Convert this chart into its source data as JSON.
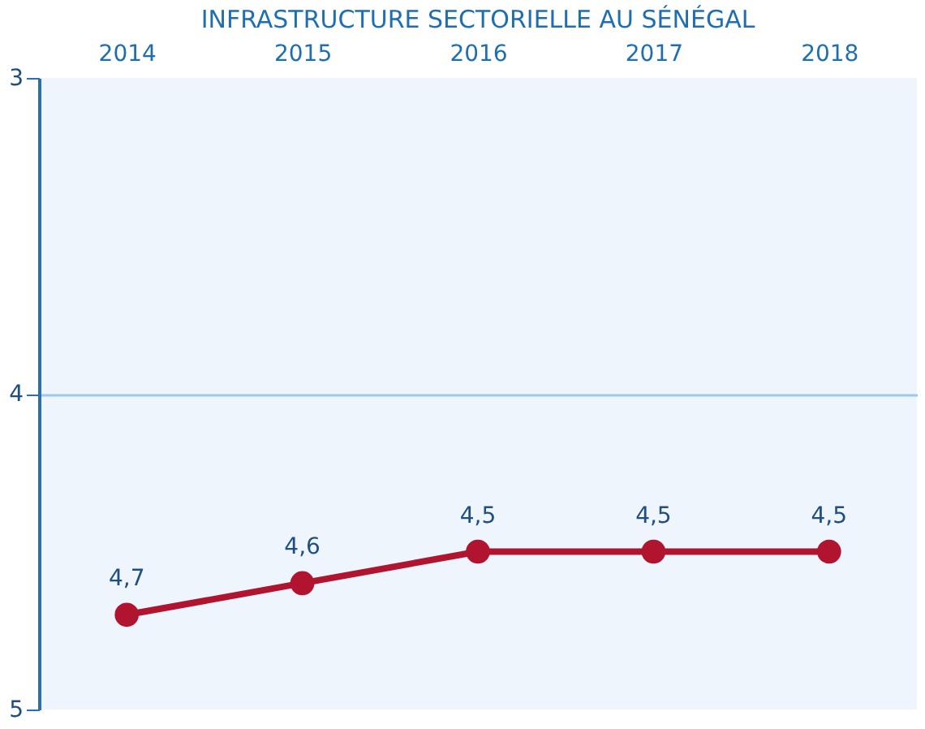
{
  "chart_data": {
    "type": "line",
    "title": "INFRASTRUCTURE SECTORIELLE AU SÉNÉGAL",
    "categories": [
      "2014",
      "2015",
      "2016",
      "2017",
      "2018"
    ],
    "series": [
      {
        "color": "#b0142f",
        "values": [
          4.7,
          4.6,
          4.5,
          4.5,
          4.5
        ],
        "value_labels": [
          "4,7",
          "4,6",
          "4,5",
          "4,5",
          "4,5"
        ]
      }
    ],
    "ylim": [
      5,
      3
    ],
    "yticks": [
      3,
      4,
      5
    ],
    "marker": "circle",
    "line_style": "solid",
    "ref_lines": [
      {
        "axis": "y",
        "value": 4,
        "color": "#9cc8ec"
      }
    ]
  }
}
